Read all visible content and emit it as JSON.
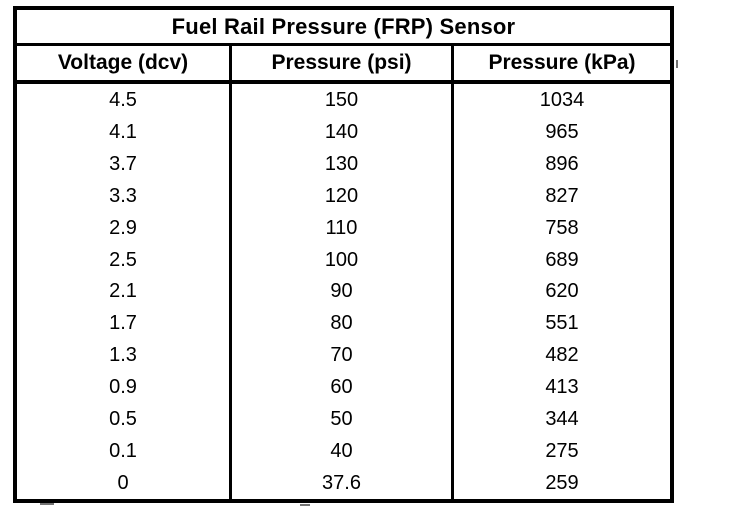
{
  "table": {
    "title": "Fuel Rail Pressure (FRP) Sensor",
    "columns": [
      "Voltage (dcv)",
      "Pressure (psi)",
      "Pressure (kPa)"
    ],
    "rows": [
      [
        "4.5",
        "150",
        "1034"
      ],
      [
        "4.1",
        "140",
        "965"
      ],
      [
        "3.7",
        "130",
        "896"
      ],
      [
        "3.3",
        "120",
        "827"
      ],
      [
        "2.9",
        "110",
        "758"
      ],
      [
        "2.5",
        "100",
        "689"
      ],
      [
        "2.1",
        "90",
        "620"
      ],
      [
        "1.7",
        "80",
        "551"
      ],
      [
        "1.3",
        "70",
        "482"
      ],
      [
        "0.9",
        "60",
        "413"
      ],
      [
        "0.5",
        "50",
        "344"
      ],
      [
        "0.1",
        "40",
        "275"
      ],
      [
        "0",
        "37.6",
        "259"
      ]
    ],
    "colors": {
      "border": "#000000",
      "background": "#ffffff",
      "text": "#000000"
    }
  }
}
